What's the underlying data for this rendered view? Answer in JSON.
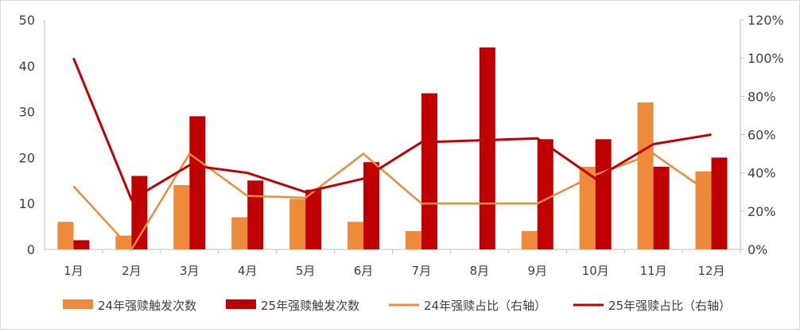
{
  "chart_data": {
    "type": "bar",
    "categories": [
      "1月",
      "2月",
      "3月",
      "4月",
      "5月",
      "6月",
      "7月",
      "8月",
      "9月",
      "10月",
      "11月",
      "12月"
    ],
    "series": [
      {
        "name": "24年强赎触发次数",
        "kind": "bar",
        "axis": "left",
        "color": "#ED8B3A",
        "values": [
          6,
          3,
          14,
          7,
          11,
          6,
          4,
          null,
          4,
          18,
          32,
          17
        ]
      },
      {
        "name": "25年强赎触发次数",
        "kind": "bar",
        "axis": "left",
        "color": "#C00000",
        "values": [
          2,
          16,
          29,
          15,
          13,
          19,
          34,
          44,
          24,
          24,
          18,
          20
        ]
      },
      {
        "name": "24年强赎占比（右轴）",
        "kind": "line",
        "axis": "right",
        "color": "#ED8B3A",
        "values": [
          33,
          0,
          50,
          28,
          27,
          50,
          24,
          null,
          24,
          39,
          50,
          29
        ]
      },
      {
        "name": "25年强赎占比（右轴）",
        "kind": "line",
        "axis": "right",
        "color": "#C00000",
        "values": [
          100,
          26,
          44,
          40,
          30,
          37,
          56,
          57,
          58,
          37,
          55,
          60
        ]
      }
    ],
    "y_left": {
      "ylim": [
        0,
        50
      ],
      "ticks": [
        "0",
        "10",
        "20",
        "30",
        "40",
        "50"
      ]
    },
    "y_right": {
      "ylim": [
        0,
        120
      ],
      "ticks": [
        "0%",
        "20%",
        "40%",
        "60%",
        "80%",
        "100%",
        "120%"
      ]
    },
    "grid": false,
    "legend_position": "bottom"
  }
}
